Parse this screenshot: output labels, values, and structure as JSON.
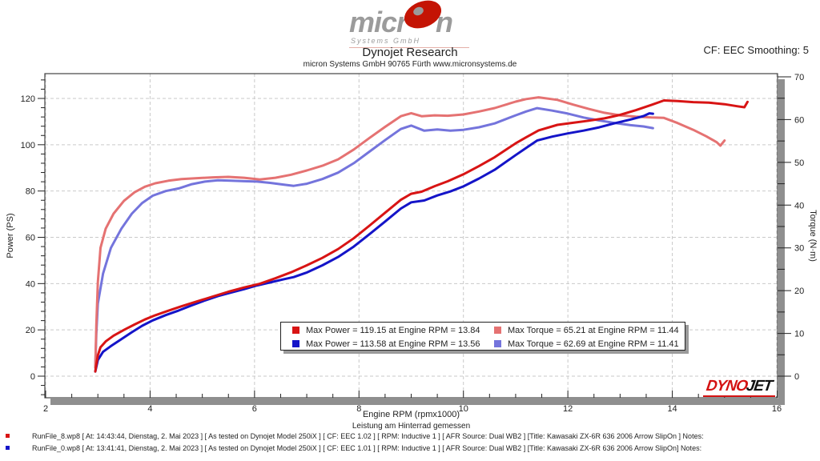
{
  "header": {
    "logo": {
      "text_pre": "micr",
      "text_post": "n",
      "sub": "Systems GmbH"
    },
    "title": "Dynojet Research",
    "subtitle": "micron Systems GmbH  90765 Fürth www.micronsystems.de",
    "cf_smoothing": "CF: EEC Smoothing: 5"
  },
  "watermark": {
    "dyno": "DYNO",
    "jet": "JET"
  },
  "chart_data": {
    "type": "line",
    "x_axis": {
      "label": "Engine RPM (rpmx1000)",
      "min": 2,
      "max": 16,
      "major_step": 2,
      "minor_step": 0.5
    },
    "y_left": {
      "label": "Power (PS)",
      "tick_min": 0,
      "tick_max": 120,
      "major_step": 20,
      "minor_step": 4
    },
    "y_right": {
      "label": "Torque (N·m)",
      "tick_min": 0,
      "tick_max": 70,
      "major_step": 10,
      "minor_step": 5
    },
    "grid": {
      "style": "dashed",
      "color": "#c9c9c9",
      "x_on_majors": true,
      "y_on_left_majors": true
    },
    "legend": {
      "position": "bottom-center-inside",
      "entries": [
        {
          "color": "#d81414",
          "label": "Max Power = 119.15 at Engine RPM = 13.84"
        },
        {
          "color": "#e57272",
          "label": "Max Torque = 65.21 at Engine RPM = 11.44"
        },
        {
          "color": "#1414c8",
          "label": "Max Power = 113.58 at Engine RPM = 13.56"
        },
        {
          "color": "#7474dc",
          "label": "Max Torque = 62.69 at Engine RPM = 11.41"
        }
      ]
    },
    "series": [
      {
        "name": "torque_run0",
        "run": "RunFile_0.wp8",
        "axis": "right",
        "color": "#7474dc",
        "points": [
          [
            2.95,
            2
          ],
          [
            2.97,
            10
          ],
          [
            3.0,
            17
          ],
          [
            3.1,
            24
          ],
          [
            3.25,
            30
          ],
          [
            3.45,
            34.5
          ],
          [
            3.65,
            38
          ],
          [
            3.85,
            40.5
          ],
          [
            4.05,
            42.2
          ],
          [
            4.3,
            43.3
          ],
          [
            4.55,
            43.9
          ],
          [
            4.8,
            44.9
          ],
          [
            5.05,
            45.5
          ],
          [
            5.3,
            45.8
          ],
          [
            5.55,
            45.7
          ],
          [
            5.8,
            45.6
          ],
          [
            6.05,
            45.5
          ],
          [
            6.3,
            45.2
          ],
          [
            6.55,
            44.8
          ],
          [
            6.75,
            44.5
          ],
          [
            7.0,
            45.0
          ],
          [
            7.3,
            46.1
          ],
          [
            7.6,
            47.6
          ],
          [
            7.9,
            49.8
          ],
          [
            8.2,
            52.5
          ],
          [
            8.5,
            55.2
          ],
          [
            8.8,
            57.8
          ],
          [
            9.0,
            58.6
          ],
          [
            9.25,
            57.4
          ],
          [
            9.5,
            57.7
          ],
          [
            9.75,
            57.4
          ],
          [
            10.0,
            57.6
          ],
          [
            10.3,
            58.2
          ],
          [
            10.6,
            59.1
          ],
          [
            11.0,
            61.0
          ],
          [
            11.2,
            61.9
          ],
          [
            11.41,
            62.69
          ],
          [
            11.7,
            62.1
          ],
          [
            12.0,
            61.4
          ],
          [
            12.3,
            60.5
          ],
          [
            12.6,
            59.8
          ],
          [
            12.9,
            59.2
          ],
          [
            13.2,
            58.7
          ],
          [
            13.45,
            58.4
          ],
          [
            13.63,
            58.0
          ]
        ]
      },
      {
        "name": "torque_run8",
        "run": "RunFile_8.wp8",
        "axis": "right",
        "color": "#e57272",
        "points": [
          [
            2.95,
            2
          ],
          [
            2.97,
            12
          ],
          [
            3.0,
            22
          ],
          [
            3.05,
            30
          ],
          [
            3.15,
            34.5
          ],
          [
            3.3,
            38
          ],
          [
            3.5,
            41
          ],
          [
            3.7,
            43
          ],
          [
            3.9,
            44.3
          ],
          [
            4.1,
            45.1
          ],
          [
            4.35,
            45.7
          ],
          [
            4.6,
            46.1
          ],
          [
            4.9,
            46.3
          ],
          [
            5.2,
            46.5
          ],
          [
            5.5,
            46.6
          ],
          [
            5.8,
            46.4
          ],
          [
            6.1,
            46.0
          ],
          [
            6.4,
            46.4
          ],
          [
            6.7,
            47.1
          ],
          [
            7.0,
            48.1
          ],
          [
            7.3,
            49.2
          ],
          [
            7.6,
            50.7
          ],
          [
            7.9,
            53.0
          ],
          [
            8.2,
            55.7
          ],
          [
            8.5,
            58.3
          ],
          [
            8.8,
            60.8
          ],
          [
            9.0,
            61.5
          ],
          [
            9.2,
            60.8
          ],
          [
            9.45,
            61.0
          ],
          [
            9.7,
            60.9
          ],
          [
            10.0,
            61.2
          ],
          [
            10.3,
            61.9
          ],
          [
            10.6,
            62.7
          ],
          [
            11.0,
            64.2
          ],
          [
            11.2,
            64.8
          ],
          [
            11.44,
            65.21
          ],
          [
            11.8,
            64.6
          ],
          [
            12.1,
            63.5
          ],
          [
            12.4,
            62.5
          ],
          [
            12.7,
            61.6
          ],
          [
            13.0,
            61.0
          ],
          [
            13.3,
            60.7
          ],
          [
            13.6,
            60.5
          ],
          [
            13.84,
            60.4
          ],
          [
            14.1,
            59.2
          ],
          [
            14.4,
            57.6
          ],
          [
            14.65,
            56.1
          ],
          [
            14.85,
            54.7
          ],
          [
            14.92,
            53.9
          ],
          [
            15.0,
            55.1
          ]
        ]
      },
      {
        "name": "power_run0",
        "run": "RunFile_0.wp8",
        "axis": "left",
        "color": "#1414c8",
        "points": [
          [
            2.95,
            2
          ],
          [
            2.97,
            4
          ],
          [
            3.0,
            7
          ],
          [
            3.1,
            10.5
          ],
          [
            3.25,
            13
          ],
          [
            3.45,
            16
          ],
          [
            3.65,
            19
          ],
          [
            3.85,
            21.8
          ],
          [
            4.05,
            24.1
          ],
          [
            4.3,
            26.4
          ],
          [
            4.55,
            28.4
          ],
          [
            4.8,
            30.6
          ],
          [
            5.05,
            32.7
          ],
          [
            5.3,
            34.6
          ],
          [
            5.55,
            36.1
          ],
          [
            5.8,
            37.6
          ],
          [
            6.05,
            39.2
          ],
          [
            6.3,
            40.5
          ],
          [
            6.55,
            41.8
          ],
          [
            6.75,
            42.8
          ],
          [
            7.0,
            44.8
          ],
          [
            7.3,
            47.9
          ],
          [
            7.6,
            51.5
          ],
          [
            7.9,
            56.0
          ],
          [
            8.2,
            61.3
          ],
          [
            8.5,
            66.8
          ],
          [
            8.8,
            72.4
          ],
          [
            9.0,
            75.1
          ],
          [
            9.25,
            75.9
          ],
          [
            9.5,
            78.1
          ],
          [
            9.75,
            79.8
          ],
          [
            10.0,
            82.0
          ],
          [
            10.3,
            85.4
          ],
          [
            10.6,
            89.2
          ],
          [
            11.0,
            95.5
          ],
          [
            11.2,
            98.6
          ],
          [
            11.41,
            101.8
          ],
          [
            11.7,
            103.5
          ],
          [
            12.0,
            104.9
          ],
          [
            12.3,
            106.1
          ],
          [
            12.6,
            107.5
          ],
          [
            12.9,
            109.3
          ],
          [
            13.2,
            110.9
          ],
          [
            13.45,
            112.4
          ],
          [
            13.56,
            113.58
          ],
          [
            13.63,
            113.4
          ]
        ]
      },
      {
        "name": "power_run8",
        "run": "RunFile_8.wp8",
        "axis": "left",
        "color": "#d81414",
        "points": [
          [
            2.95,
            2
          ],
          [
            2.97,
            5
          ],
          [
            3.0,
            9
          ],
          [
            3.05,
            12.5
          ],
          [
            3.15,
            15
          ],
          [
            3.3,
            17.5
          ],
          [
            3.5,
            20.0
          ],
          [
            3.7,
            22.3
          ],
          [
            3.9,
            24.5
          ],
          [
            4.1,
            26.3
          ],
          [
            4.35,
            28.3
          ],
          [
            4.6,
            30.2
          ],
          [
            4.9,
            32.3
          ],
          [
            5.2,
            34.4
          ],
          [
            5.5,
            36.5
          ],
          [
            5.8,
            38.3
          ],
          [
            6.1,
            39.9
          ],
          [
            6.4,
            42.3
          ],
          [
            6.7,
            44.9
          ],
          [
            7.0,
            47.9
          ],
          [
            7.3,
            51.1
          ],
          [
            7.6,
            54.9
          ],
          [
            7.9,
            59.6
          ],
          [
            8.2,
            65.0
          ],
          [
            8.5,
            70.6
          ],
          [
            8.8,
            76.2
          ],
          [
            9.0,
            78.8
          ],
          [
            9.2,
            79.7
          ],
          [
            9.45,
            82.1
          ],
          [
            9.7,
            84.2
          ],
          [
            10.0,
            87.2
          ],
          [
            10.3,
            90.8
          ],
          [
            10.6,
            94.6
          ],
          [
            11.0,
            100.6
          ],
          [
            11.2,
            103.2
          ],
          [
            11.44,
            106.2
          ],
          [
            11.8,
            108.6
          ],
          [
            12.1,
            109.5
          ],
          [
            12.4,
            110.4
          ],
          [
            12.7,
            111.4
          ],
          [
            13.0,
            112.9
          ],
          [
            13.3,
            114.9
          ],
          [
            13.6,
            117.2
          ],
          [
            13.84,
            119.15
          ],
          [
            14.1,
            118.9
          ],
          [
            14.4,
            118.4
          ],
          [
            14.7,
            118.2
          ],
          [
            15.0,
            117.5
          ],
          [
            15.25,
            116.6
          ],
          [
            15.38,
            116.2
          ],
          [
            15.44,
            118.5
          ]
        ]
      }
    ]
  },
  "footer": {
    "caption": "Leistung am Hinterrad gemessen",
    "runs": [
      {
        "color": "#d81414",
        "text": "RunFile_8.wp8 [ At: 14:43:44, Dienstag, 2. Mai 2023 ] [ As tested on Dynojet Model 250iX ] [ CF: EEC 1.02 ] [ RPM: Inductive 1 ] [ AFR Source: Dual WB2 ] [Title: Kawasaki ZX-6R 636 2006 Arrow SlipOn ]  Notes:"
      },
      {
        "color": "#1414c8",
        "text": "RunFile_0.wp8 [ At: 13:41:41, Dienstag, 2. Mai 2023 ] [ As tested on Dynojet Model 250iX ] [ CF: EEC 1.01 ] [ RPM: Inductive 1 ] [ AFR Source: Dual WB2 ] [Title: Kawasaki ZX-6R 636 2006 Arrow SlipOn]  Notes:"
      }
    ]
  }
}
